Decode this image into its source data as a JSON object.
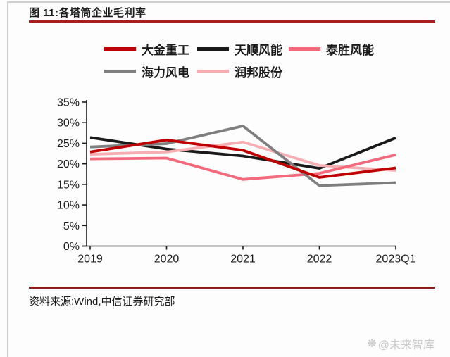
{
  "page": {
    "figure_label": "图 11:各塔筒企业毛利率",
    "source_text": "资料来源:Wind,中信证券研究部",
    "watermark_icon": "❋",
    "watermark_text": "@未来智库"
  },
  "colors": {
    "title_underline": "#AA1E1E",
    "footer_divider": "#8B1A1B",
    "axis": "#1A1A1A",
    "text": "#1A1A1A",
    "watermark": "#C9C9C9",
    "page_border": "#CFCFCF"
  },
  "chart_data": {
    "type": "line",
    "title": "各塔筒企业毛利率",
    "categories": [
      "2019",
      "2020",
      "2021",
      "2022",
      "2023Q1"
    ],
    "series": [
      {
        "name": "大金重工",
        "color": "#C00000",
        "values": [
          22.9,
          25.8,
          23.3,
          16.7,
          19.0
        ]
      },
      {
        "name": "天顺风能",
        "color": "#1A1A1A",
        "values": [
          26.4,
          23.6,
          21.9,
          18.9,
          26.3
        ]
      },
      {
        "name": "泰胜风能",
        "color": "#F4697C",
        "values": [
          21.2,
          21.4,
          16.2,
          17.7,
          22.2
        ]
      },
      {
        "name": "海力风电",
        "color": "#7F7F7F",
        "values": [
          24.1,
          24.9,
          29.2,
          14.7,
          15.4
        ]
      },
      {
        "name": "润邦股份",
        "color": "#F7AEB2",
        "values": [
          22.3,
          22.9,
          25.3,
          19.6,
          18.4
        ]
      }
    ],
    "xlabel": "",
    "ylabel": "",
    "ylim": [
      0,
      35
    ],
    "ytick_step": 5,
    "ytick_labels": [
      "0%",
      "5%",
      "10%",
      "15%",
      "20%",
      "25%",
      "30%",
      "35%"
    ],
    "grid": false,
    "legend_position": "top",
    "draw_order_indices": [
      1,
      4,
      2,
      3,
      0
    ]
  }
}
